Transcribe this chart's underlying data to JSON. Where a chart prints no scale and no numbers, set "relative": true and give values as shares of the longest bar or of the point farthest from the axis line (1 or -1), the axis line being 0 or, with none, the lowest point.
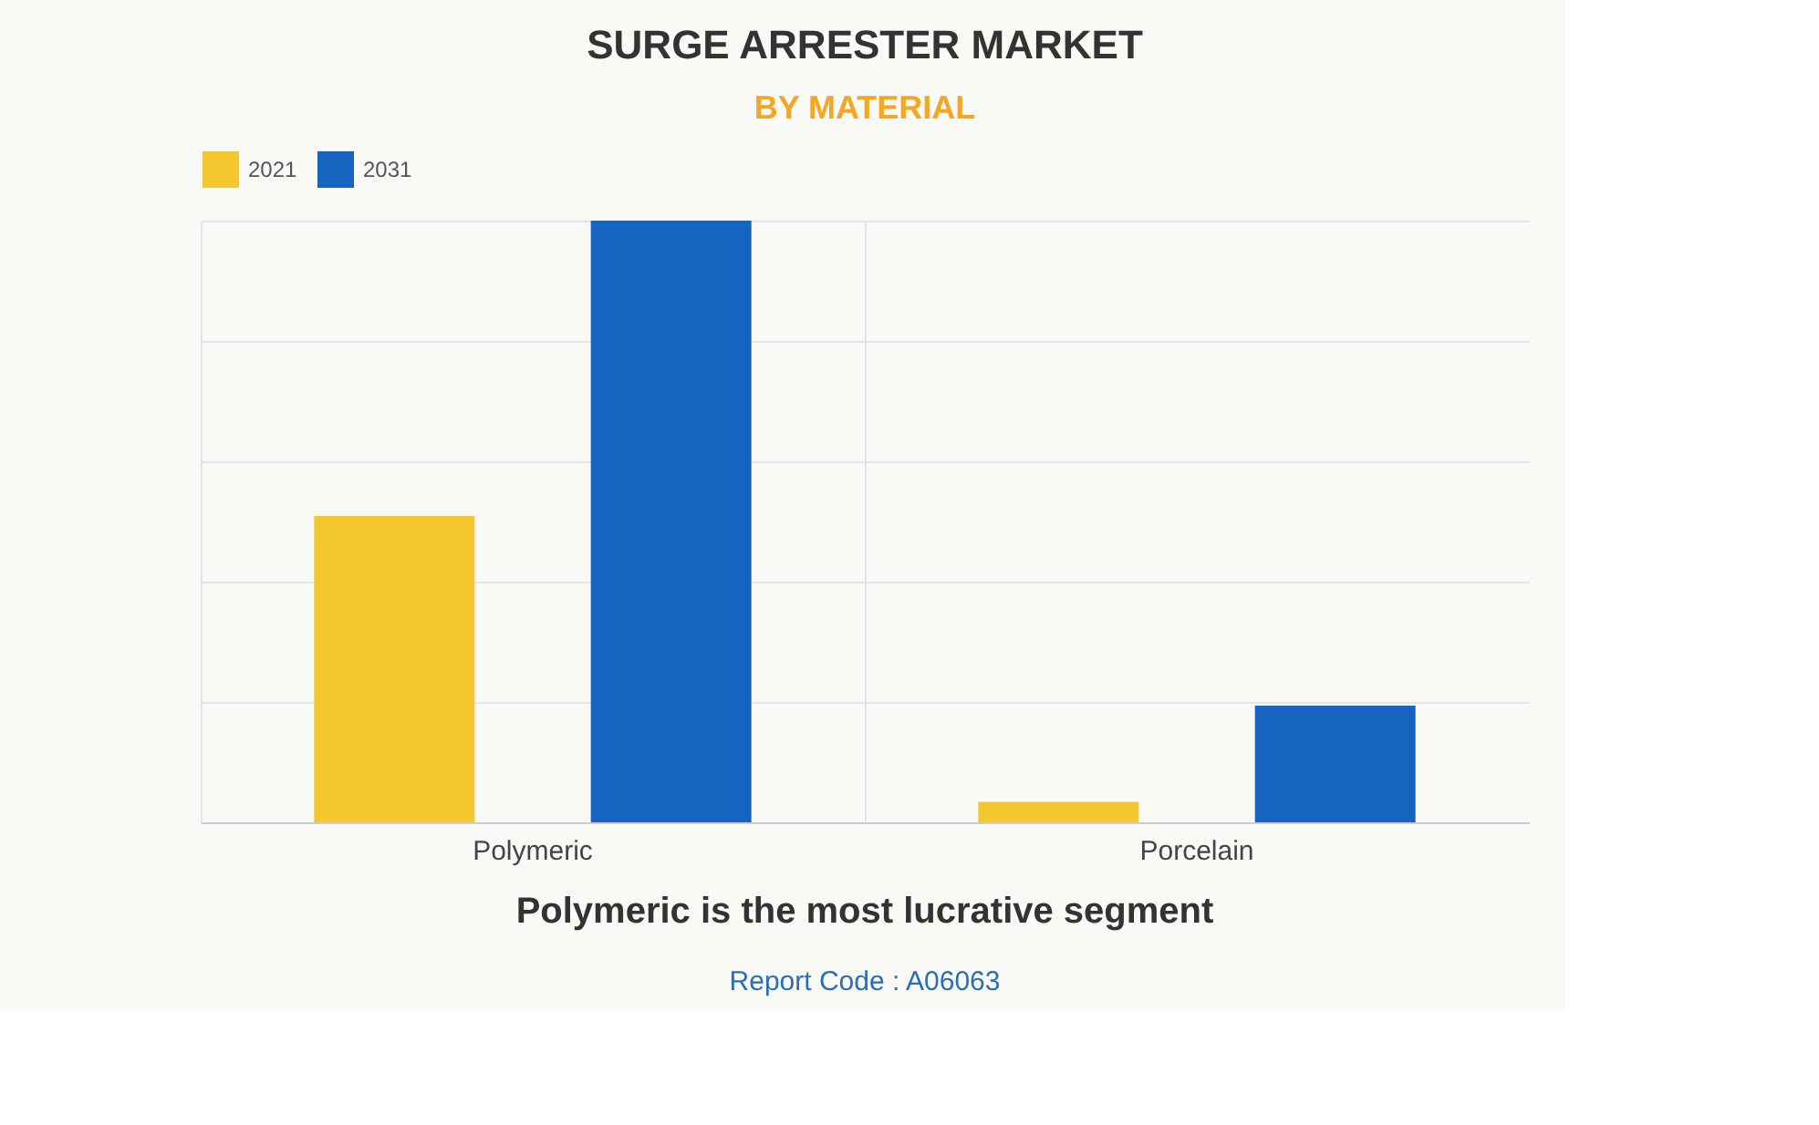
{
  "chart_data": {
    "type": "bar",
    "title": "SURGE ARRESTER MARKET",
    "subtitle": "BY MATERIAL",
    "categories": [
      "Polymeric",
      "Porcelain"
    ],
    "relative": true,
    "series": [
      {
        "name": "2021",
        "color": "#f4c72f",
        "values": [
          0.509,
          0.034
        ]
      },
      {
        "name": "2031",
        "color": "#1565c0",
        "values": [
          1,
          0.194
        ]
      }
    ],
    "grid": true,
    "legend": "top",
    "annotations": [
      "Polymeric is the most lucrative segment",
      "Report Code : A06063"
    ]
  }
}
